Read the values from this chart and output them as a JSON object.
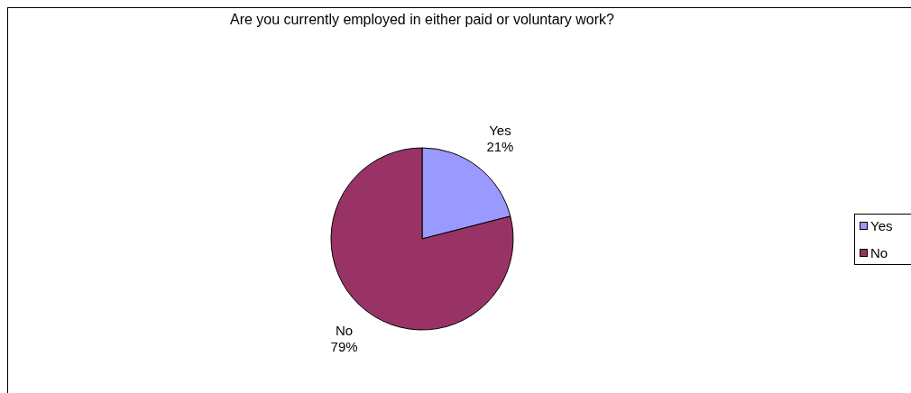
{
  "chart_data": {
    "type": "pie",
    "title": "Are you currently employed in either paid or voluntary work?",
    "categories": [
      "Yes",
      "No"
    ],
    "values": [
      21,
      79
    ],
    "colors": [
      "#9999ff",
      "#993366"
    ],
    "value_labels": [
      "21%",
      "79%"
    ],
    "legend": "right"
  }
}
